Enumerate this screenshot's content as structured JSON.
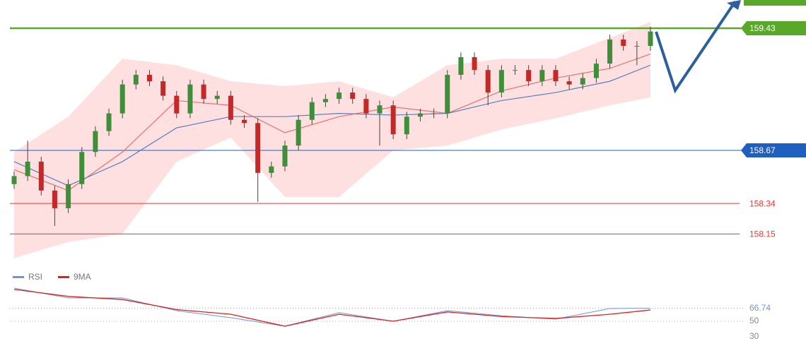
{
  "chart_data": [
    {
      "type": "candlestick",
      "open": [
        158.46,
        158.51,
        158.6,
        158.42,
        158.31,
        158.46,
        158.66,
        158.79,
        158.9,
        159.08,
        159.14,
        159.1,
        159.01,
        158.9,
        159.08,
        158.99,
        159.01,
        158.86,
        158.84,
        158.53,
        158.57,
        158.7,
        158.86,
        158.97,
        158.99,
        159.03,
        158.99,
        158.9,
        158.95,
        158.77,
        158.88,
        158.9,
        158.9,
        159.14,
        159.25,
        159.17,
        159.03,
        159.17,
        159.17,
        159.1,
        159.17,
        159.1,
        159.08,
        159.12,
        159.21,
        159.36,
        159.32,
        159.32
      ],
      "high": [
        158.54,
        158.73,
        158.63,
        158.45,
        158.49,
        158.69,
        158.82,
        158.93,
        159.11,
        159.17,
        159.17,
        159.13,
        159.04,
        159.11,
        159.11,
        159.04,
        159.04,
        158.89,
        158.87,
        158.6,
        158.73,
        158.89,
        159.0,
        159.02,
        159.06,
        159.06,
        159.02,
        158.98,
        158.98,
        158.91,
        158.93,
        158.93,
        159.17,
        159.28,
        159.28,
        159.2,
        159.2,
        159.2,
        159.2,
        159.2,
        159.2,
        159.13,
        159.15,
        159.24,
        159.39,
        159.39,
        159.35,
        159.44
      ],
      "low": [
        158.43,
        158.48,
        158.39,
        158.2,
        158.28,
        158.43,
        158.63,
        158.76,
        158.87,
        159.05,
        159.07,
        158.98,
        158.87,
        158.87,
        158.96,
        158.96,
        158.83,
        158.81,
        158.35,
        158.5,
        158.54,
        158.67,
        158.83,
        158.94,
        158.96,
        158.96,
        158.87,
        158.7,
        158.74,
        158.74,
        158.85,
        158.87,
        158.87,
        159.11,
        159.14,
        158.95,
        159.0,
        159.14,
        159.07,
        159.07,
        159.07,
        159.05,
        159.05,
        159.09,
        159.18,
        159.29,
        159.2,
        159.29
      ],
      "close": [
        158.51,
        158.6,
        158.42,
        158.31,
        158.46,
        158.66,
        158.79,
        158.9,
        159.08,
        159.14,
        159.1,
        159.01,
        158.9,
        159.08,
        158.99,
        159.01,
        158.86,
        158.84,
        158.53,
        158.57,
        158.7,
        158.86,
        158.97,
        158.99,
        159.03,
        158.99,
        158.9,
        158.95,
        158.77,
        158.88,
        158.9,
        158.9,
        159.14,
        159.25,
        159.17,
        159.03,
        159.17,
        159.17,
        159.1,
        159.17,
        159.1,
        159.08,
        159.12,
        159.21,
        159.36,
        159.32,
        159.32,
        159.41
      ],
      "up_color": "#3f8f3a",
      "down_color": "#c62828",
      "band_x": [
        0,
        4,
        8,
        12,
        16,
        20,
        24,
        28,
        32,
        36,
        40,
        44,
        47
      ],
      "band_upper": [
        158.66,
        158.88,
        159.24,
        159.2,
        159.1,
        159.07,
        159.1,
        159.0,
        159.2,
        159.24,
        159.24,
        159.37,
        159.47
      ],
      "band_lower": [
        158.0,
        158.1,
        158.15,
        158.6,
        158.75,
        158.38,
        158.38,
        158.67,
        158.7,
        158.8,
        158.87,
        158.95,
        159.0
      ],
      "band_color": "#fde0df",
      "series": [
        {
          "color": "#e57373",
          "values": [
            158.55,
            158.42,
            158.66,
            158.98,
            158.95,
            158.78,
            158.88,
            158.94,
            158.9,
            159.04,
            159.12,
            159.18,
            159.27
          ]
        },
        {
          "color": "#5b7fbf",
          "values": [
            158.6,
            158.45,
            158.6,
            158.81,
            158.88,
            158.88,
            158.9,
            158.89,
            158.9,
            158.98,
            159.03,
            159.1,
            159.2
          ]
        }
      ],
      "levels": [
        {
          "value": 159.43,
          "color": "#5aa82a",
          "style": "badge"
        },
        {
          "value": 158.67,
          "color": "#1f5fbf",
          "style": "badge"
        },
        {
          "value": 158.34,
          "color": "#e53935",
          "style": "text"
        },
        {
          "value": 158.15,
          "color": "#e53935",
          "style": "text"
        }
      ],
      "ylim": [
        158.0,
        159.6
      ]
    },
    {
      "type": "line",
      "x": [
        0,
        4,
        8,
        12,
        16,
        20,
        24,
        28,
        32,
        36,
        40,
        44,
        47
      ],
      "series": [
        {
          "name": "RSI",
          "color": "#6f94dc",
          "values": [
            92.7,
            80,
            80,
            63.6,
            54.5,
            43.6,
            61,
            50,
            63.6,
            57,
            52.7,
            66.4,
            66.74
          ]
        },
        {
          "name": "9MA",
          "color": "#e02020",
          "values": [
            91,
            82,
            78,
            65,
            59,
            43.6,
            59,
            50,
            62,
            56,
            53.6,
            59,
            64.5
          ]
        }
      ],
      "last_value": 66.74,
      "ylim": [
        10,
        95
      ],
      "yticks": [
        30,
        50
      ]
    }
  ]
}
